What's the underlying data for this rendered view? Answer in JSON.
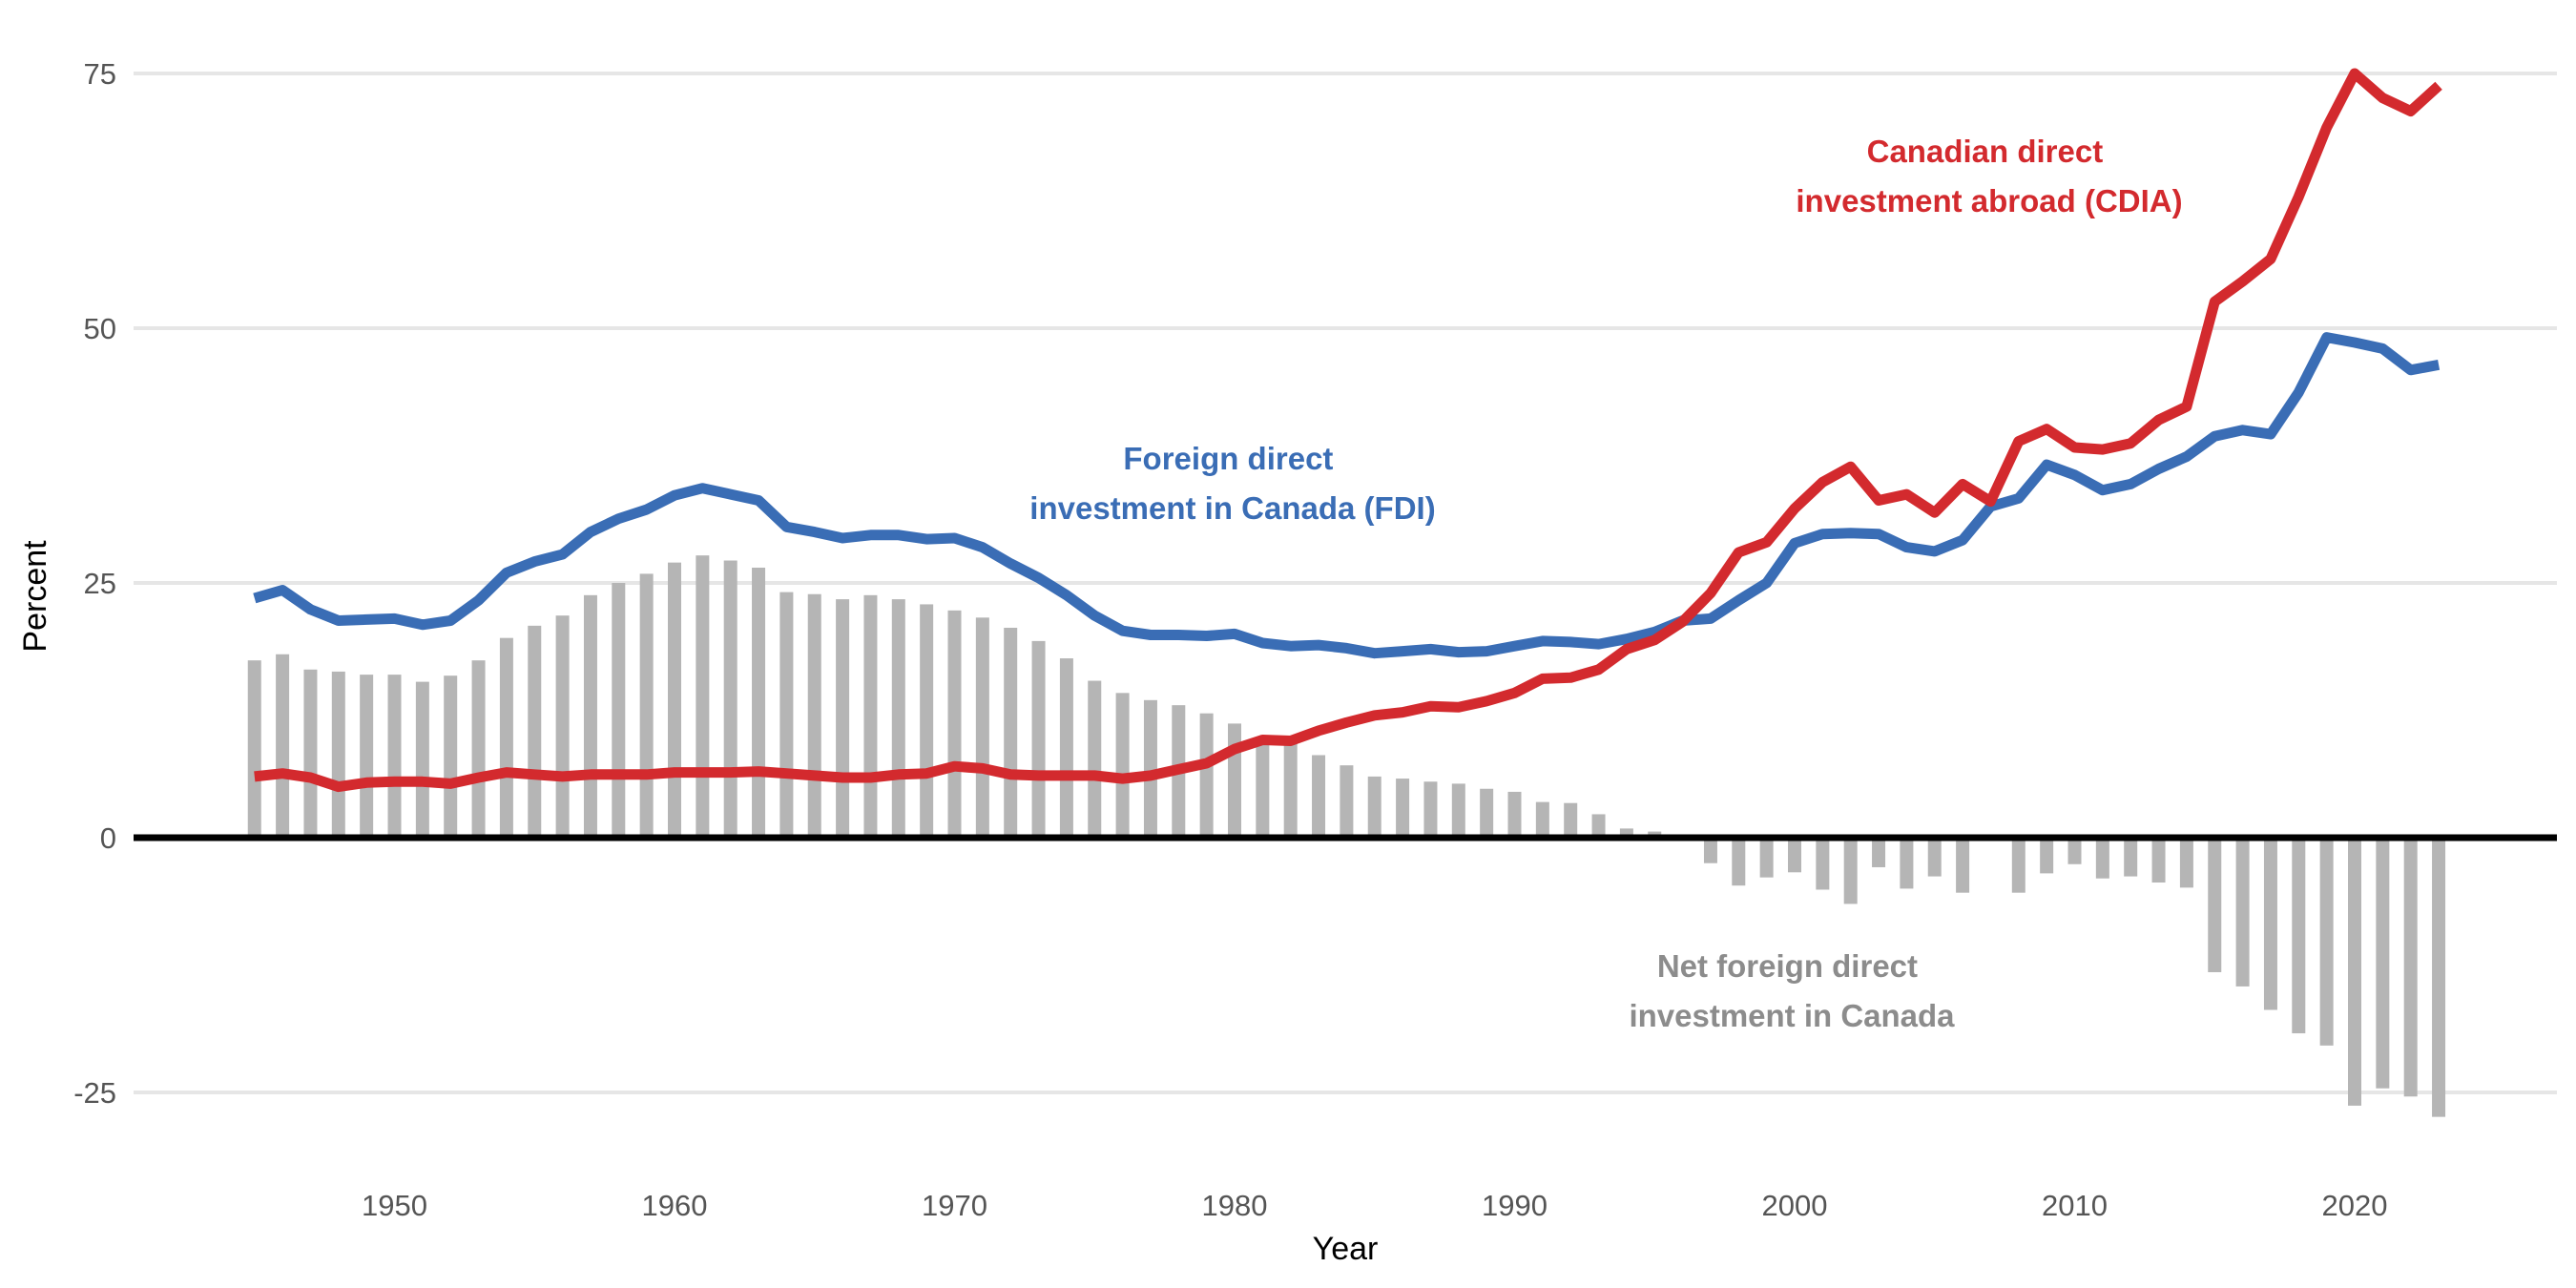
{
  "chart_data": {
    "type": "line",
    "xlabel": "Year",
    "ylabel": "Percent",
    "xlim": [
      1940,
      2027
    ],
    "ylim": [
      -32,
      79
    ],
    "x_ticks": [
      1950,
      1960,
      1970,
      1980,
      1990,
      2000,
      2010,
      2020
    ],
    "y_ticks": [
      -25,
      0,
      25,
      50,
      75
    ],
    "grid": true,
    "colors": {
      "fdi": "#3a6db5",
      "cdia": "#d32a2e",
      "net": "#b5b5b5",
      "zero_line": "#000000",
      "grid": "#e6e6e6"
    },
    "series_labels": {
      "fdi": [
        "Foreign direct",
        "investment in Canada (FDI)"
      ],
      "cdia": [
        "Canadian direct",
        "investment abroad (CDIA)"
      ],
      "net": [
        "Net foreign direct",
        "investment in Canada"
      ]
    },
    "x": [
      1945,
      1946,
      1947,
      1948,
      1949,
      1950,
      1951,
      1952,
      1953,
      1954,
      1955,
      1956,
      1957,
      1958,
      1959,
      1960,
      1961,
      1962,
      1963,
      1964,
      1965,
      1966,
      1967,
      1968,
      1969,
      1970,
      1971,
      1972,
      1973,
      1974,
      1975,
      1976,
      1977,
      1978,
      1979,
      1980,
      1981,
      1982,
      1983,
      1984,
      1985,
      1986,
      1987,
      1988,
      1989,
      1990,
      1991,
      1992,
      1993,
      1994,
      1995,
      1996,
      1997,
      1998,
      1999,
      2000,
      2001,
      2002,
      2003,
      2004,
      2005,
      2006,
      2007,
      2008,
      2009,
      2010,
      2011,
      2012,
      2013,
      2014,
      2015,
      2016,
      2017,
      2018,
      2019,
      2020,
      2021,
      2022,
      2023
    ],
    "series": [
      {
        "key": "fdi",
        "type": "line",
        "values": [
          23.5,
          24.3,
          22.4,
          21.3,
          21.4,
          21.5,
          20.9,
          21.3,
          23.3,
          26.0,
          27.1,
          27.8,
          30.0,
          31.3,
          32.2,
          33.6,
          34.3,
          33.7,
          33.1,
          30.5,
          30.0,
          29.4,
          29.7,
          29.7,
          29.3,
          29.4,
          28.5,
          26.9,
          25.5,
          23.8,
          21.8,
          20.3,
          19.9,
          19.9,
          19.8,
          20.0,
          19.1,
          18.8,
          18.9,
          18.6,
          18.1,
          18.3,
          18.5,
          18.2,
          18.3,
          18.8,
          19.3,
          19.2,
          19.0,
          19.5,
          20.2,
          21.3,
          21.5,
          23.3,
          25.0,
          28.9,
          29.8,
          29.9,
          29.8,
          28.5,
          28.1,
          29.2,
          32.5,
          33.3,
          36.6,
          35.6,
          34.1,
          34.7,
          36.2,
          37.4,
          39.4,
          40.0,
          39.6,
          43.7,
          49.1,
          48.6,
          48.0,
          45.9,
          46.4
        ]
      },
      {
        "key": "cdia",
        "type": "line",
        "values": [
          6.0,
          6.3,
          5.9,
          5.0,
          5.4,
          5.5,
          5.5,
          5.3,
          5.9,
          6.4,
          6.2,
          6.0,
          6.2,
          6.2,
          6.2,
          6.4,
          6.4,
          6.4,
          6.5,
          6.3,
          6.1,
          5.9,
          5.9,
          6.2,
          6.3,
          7.0,
          6.8,
          6.2,
          6.1,
          6.1,
          6.1,
          5.8,
          6.1,
          6.7,
          7.3,
          8.7,
          9.6,
          9.5,
          10.5,
          11.3,
          12.0,
          12.3,
          12.9,
          12.8,
          13.4,
          14.2,
          15.6,
          15.7,
          16.5,
          18.5,
          19.4,
          21.2,
          24.0,
          28.0,
          29.0,
          32.3,
          34.9,
          36.4,
          33.1,
          33.7,
          31.9,
          34.7,
          33.0,
          38.9,
          40.1,
          38.3,
          38.1,
          38.7,
          41.0,
          42.3,
          52.6,
          54.6,
          56.8,
          62.9,
          69.7,
          75.0,
          72.6,
          71.3,
          73.8
        ]
      },
      {
        "key": "net",
        "type": "bar",
        "values": [
          17.4,
          18.0,
          16.5,
          16.3,
          16.0,
          16.0,
          15.3,
          15.9,
          17.4,
          19.6,
          20.8,
          21.8,
          23.8,
          25.0,
          25.9,
          27.0,
          27.7,
          27.2,
          26.5,
          24.1,
          23.9,
          23.4,
          23.8,
          23.4,
          22.9,
          22.3,
          21.6,
          20.6,
          19.3,
          17.6,
          15.4,
          14.2,
          13.5,
          13.0,
          12.2,
          11.2,
          9.6,
          9.3,
          8.1,
          7.1,
          6.0,
          5.8,
          5.5,
          5.3,
          4.8,
          4.5,
          3.5,
          3.4,
          2.3,
          0.9,
          0.6,
          0,
          -2.5,
          -4.7,
          -3.9,
          -3.4,
          -5.1,
          -6.5,
          -2.9,
          -5.0,
          -3.8,
          -5.4,
          0,
          -5.4,
          -3.5,
          -2.6,
          -4.0,
          -3.8,
          -4.4,
          -4.9,
          -13.2,
          -14.6,
          -16.9,
          -19.2,
          -20.4,
          -26.3,
          -24.6,
          -25.4,
          -27.4
        ]
      }
    ]
  }
}
